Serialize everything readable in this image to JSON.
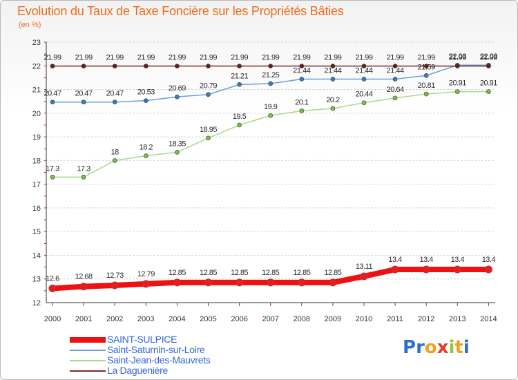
{
  "title": "Evolution du Taux de Taxe Foncière sur les Propriétés Bâties",
  "units": "(en %)",
  "colors": {
    "title": "#ef6a19",
    "legend_text": "#3366dd",
    "axis": "#333333",
    "grid": "#d6d6d6",
    "tick_red": "#cc2222"
  },
  "logo": {
    "letters": [
      {
        "char": "P",
        "color": "#2e6fd1"
      },
      {
        "char": "r",
        "color": "#2e6fd1"
      },
      {
        "char": "o",
        "color": "#f2a020"
      },
      {
        "char": "x",
        "color": "#e83a2a"
      },
      {
        "char": "i",
        "color": "#8dc63f"
      },
      {
        "char": "t",
        "color": "#f2a020"
      },
      {
        "char": "i",
        "color": "#2e6fd1"
      }
    ]
  },
  "chart_data": {
    "type": "line",
    "title": "Evolution du Taux de Taxe Foncière sur les Propriétés Bâties",
    "ylabel": "(en %)",
    "xlabel": "",
    "ylim": [
      12,
      23
    ],
    "yticks": [
      "12",
      "13",
      "14",
      "15",
      "16",
      "17",
      "18",
      "19",
      "20",
      "21",
      "22",
      "23"
    ],
    "categories": [
      "2000",
      "2001",
      "2002",
      "2003",
      "2004",
      "2005",
      "2006",
      "2007",
      "2008",
      "2009",
      "2010",
      "2011",
      "2012",
      "2013",
      "2014"
    ],
    "grid": "horizontal",
    "legend_position": "bottom-left",
    "series": [
      {
        "name": "SAINT-SULPICE",
        "color": "#ee1111",
        "marker_color": "#dd2222",
        "width": 8,
        "values": [
          12.6,
          12.68,
          12.73,
          12.79,
          12.85,
          12.85,
          12.85,
          12.85,
          12.85,
          12.85,
          13.11,
          13.4,
          13.4,
          13.4,
          13.4
        ],
        "labels": [
          "12.6",
          "12.68",
          "12.73",
          "12.79",
          "12.85",
          "12.85",
          "12.85",
          "12.85",
          "12.85",
          "12.85",
          "13.11",
          "13.4",
          "13.4",
          "13.4",
          "13.4"
        ]
      },
      {
        "name": "Saint-Saturnin-sur-Loire",
        "color": "#6b9fd4",
        "marker_color": "#3b7bc4",
        "width": 1.5,
        "values": [
          20.47,
          20.47,
          20.47,
          20.53,
          20.69,
          20.79,
          21.21,
          21.25,
          21.44,
          21.44,
          21.44,
          21.44,
          21.59,
          22.03,
          22.03
        ],
        "labels": [
          "20.47",
          "20.47",
          "20.47",
          "20.53",
          "20.69",
          "20.79",
          "21.21",
          "21.25",
          "21.44",
          "21.44",
          "21.44",
          "21.44",
          "21.59",
          "22.03",
          "22.03"
        ]
      },
      {
        "name": "Saint-Jean-des-Mauvrets",
        "color": "#a9d98a",
        "marker_color": "#7cc242",
        "width": 1.5,
        "values": [
          17.3,
          17.3,
          18,
          18.2,
          18.35,
          18.95,
          19.5,
          19.9,
          20.1,
          20.2,
          20.44,
          20.64,
          20.81,
          20.91,
          20.91
        ],
        "labels": [
          "17.3",
          "17.3",
          "18",
          "18.2",
          "18.35",
          "18.95",
          "19.5",
          "19.9",
          "20.1",
          "20.2",
          "20.44",
          "20.64",
          "20.81",
          "20.91",
          "20.91"
        ]
      },
      {
        "name": "La Daguenière",
        "color": "#7a2a2a",
        "marker_color": "#6a1c1c",
        "width": 1.5,
        "values": [
          21.99,
          21.99,
          21.99,
          21.99,
          21.99,
          21.99,
          21.99,
          21.99,
          21.99,
          21.99,
          21.99,
          21.99,
          21.99,
          21.99,
          21.99
        ],
        "labels": [
          "21.99",
          "21.99",
          "21.99",
          "21.99",
          "21.99",
          "21.99",
          "21.99",
          "21.99",
          "21.99",
          "21.99",
          "21.99",
          "21.99",
          "21.99",
          "21.99",
          "21.99"
        ]
      }
    ]
  }
}
